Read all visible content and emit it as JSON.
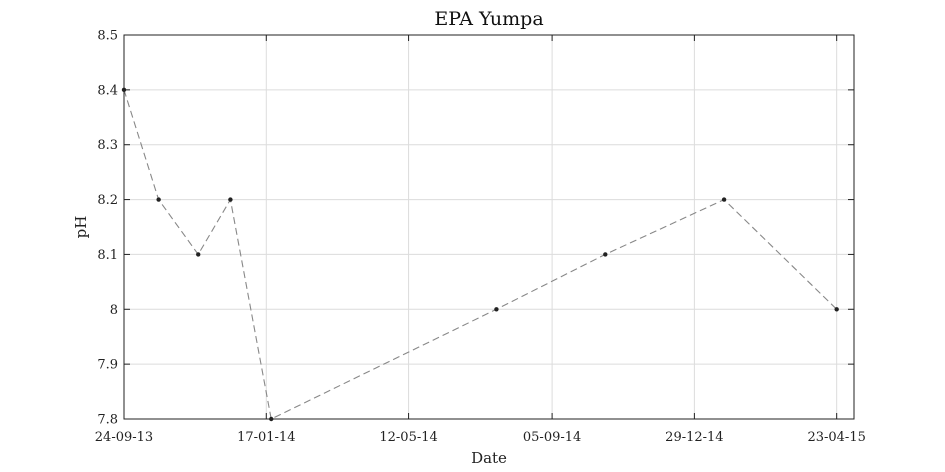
{
  "chart_data": {
    "type": "line",
    "title": "EPA Yumpa",
    "xlabel": "Date",
    "ylabel": "pH",
    "xlim": [
      "2013-09-24",
      "2015-05-07"
    ],
    "ylim": [
      7.8,
      8.5
    ],
    "grid": true,
    "x_ticks": [
      "24-09-13",
      "17-01-14",
      "12-05-14",
      "05-09-14",
      "29-12-14",
      "23-04-15"
    ],
    "x_tick_dates": [
      "2013-09-24",
      "2014-01-17",
      "2014-05-12",
      "2014-09-05",
      "2014-12-29",
      "2015-04-23"
    ],
    "y_ticks": [
      "7.8",
      "7.9",
      "8",
      "8.1",
      "8.2",
      "8.3",
      "8.4",
      "8.5"
    ],
    "y_tick_values": [
      7.8,
      7.9,
      8.0,
      8.1,
      8.2,
      8.3,
      8.4,
      8.5
    ],
    "series": [
      {
        "x": [
          "2013-09-24",
          "2013-10-22",
          "2013-11-23",
          "2013-12-19",
          "2014-01-21",
          "2014-07-22",
          "2014-10-18",
          "2015-01-22",
          "2015-04-23"
        ],
        "y": [
          8.4,
          8.2,
          8.1,
          8.2,
          7.8,
          8.0,
          8.1,
          8.2,
          8.0
        ],
        "line_color": "#888888",
        "marker_color": "#222222"
      }
    ]
  }
}
